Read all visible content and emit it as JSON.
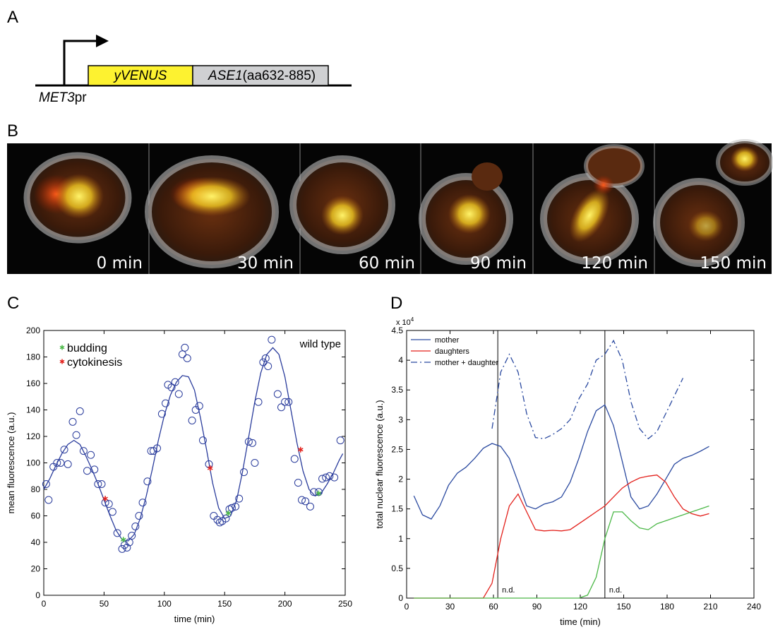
{
  "panel_labels": [
    "A",
    "B",
    "C",
    "D"
  ],
  "construct": {
    "promoter": [
      "MET3",
      "pr"
    ],
    "reporter": "yVENUS",
    "fusion": [
      "ASE1",
      "(aa632-885)"
    ]
  },
  "time_lapse": {
    "frames": [
      "0 min",
      "30 min",
      "60 min",
      "90 min",
      "120 min",
      "150 min"
    ]
  },
  "chart_data": [
    {
      "type": "scatter",
      "annotation": "wild type",
      "xlabel": "time (min)",
      "ylabel": "mean fluorescence (a.u.)",
      "xlim": [
        0,
        250
      ],
      "xticks": [
        0,
        50,
        100,
        150,
        200,
        250
      ],
      "ylim": [
        0,
        200
      ],
      "yticks": [
        0,
        20,
        40,
        60,
        80,
        100,
        120,
        140,
        160,
        180,
        200
      ],
      "series": [
        {
          "marker": "circle",
          "color": "#2a3c9c",
          "x": [
            2,
            4,
            8,
            11,
            14,
            17,
            20,
            24,
            27,
            30,
            33,
            36,
            39,
            42,
            45,
            48,
            51,
            54,
            57,
            61,
            65,
            67,
            69,
            71,
            73,
            76,
            79,
            82,
            86,
            89,
            91,
            94,
            98,
            101,
            103,
            106,
            109,
            112,
            115,
            117,
            119,
            123,
            126,
            129,
            132,
            137,
            141,
            144,
            146,
            148,
            151,
            154,
            156,
            159,
            162,
            166,
            170,
            173,
            175,
            178,
            182,
            184,
            186,
            189,
            194,
            197,
            200,
            203,
            208,
            211,
            214,
            217,
            221,
            224,
            228,
            231,
            234,
            237,
            241,
            246
          ],
          "values": [
            84,
            72,
            97,
            100,
            100,
            110,
            99,
            131,
            121,
            139,
            109,
            94,
            106,
            95,
            84,
            84,
            70,
            69,
            63,
            47,
            35,
            38,
            36,
            40,
            45,
            52,
            60,
            70,
            86,
            109,
            109,
            111,
            137,
            145,
            159,
            157,
            161,
            152,
            182,
            187,
            179,
            132,
            140,
            143,
            117,
            99,
            60,
            57,
            55,
            56,
            58,
            65,
            66,
            67,
            73,
            93,
            116,
            115,
            100,
            146,
            176,
            179,
            173,
            193,
            152,
            142,
            146,
            146,
            103,
            85,
            72,
            71,
            67,
            78,
            78,
            88,
            89,
            90,
            89,
            117
          ]
        },
        {
          "marker": "line",
          "color": "#2a3c9c",
          "x": [
            0,
            5,
            10,
            15,
            20,
            25,
            30,
            35,
            40,
            45,
            50,
            55,
            60,
            65,
            70,
            75,
            80,
            85,
            90,
            95,
            100,
            105,
            110,
            115,
            120,
            125,
            130,
            135,
            140,
            145,
            150,
            155,
            160,
            165,
            170,
            175,
            180,
            185,
            190,
            195,
            200,
            205,
            210,
            215,
            220,
            225,
            230,
            235,
            240,
            245,
            248
          ],
          "values": [
            80,
            88,
            98,
            107,
            114,
            117,
            114,
            105,
            95,
            84,
            72,
            60,
            49,
            42,
            41,
            46,
            58,
            75,
            95,
            117,
            136,
            151,
            161,
            166,
            165,
            155,
            134,
            110,
            85,
            66,
            58,
            60,
            72,
            94,
            120,
            146,
            168,
            182,
            187,
            182,
            165,
            140,
            115,
            94,
            80,
            75,
            77,
            84,
            92,
            102,
            107
          ]
        },
        {
          "name": "budding",
          "marker": "star",
          "color": "#4cb848",
          "x": [
            66,
            153,
            228
          ],
          "values": [
            42,
            62,
            77
          ]
        },
        {
          "name": "cytokinesis",
          "marker": "star",
          "color": "#e3201b",
          "x": [
            51,
            138,
            213
          ],
          "values": [
            73,
            96,
            110
          ]
        }
      ]
    },
    {
      "type": "line",
      "xlabel": "time (min)",
      "ylabel": "total nuclear fluorescence (a.u.)",
      "y_scale": [
        "x 10",
        "4"
      ],
      "xlim": [
        0,
        240
      ],
      "xticks": [
        0,
        30,
        60,
        90,
        120,
        150,
        180,
        210,
        240
      ],
      "ylim": [
        0,
        4.5
      ],
      "yticks": [
        0,
        0.5,
        1,
        1.5,
        2,
        2.5,
        3,
        3.5,
        4,
        4.5
      ],
      "x": [
        5,
        11,
        17,
        23,
        29,
        35,
        41,
        47,
        53,
        59,
        65,
        71,
        77,
        83,
        89,
        95,
        101,
        107,
        113,
        119,
        125,
        131,
        137,
        143,
        149,
        155,
        161,
        167,
        173,
        179,
        185,
        191,
        197,
        203,
        209
      ],
      "markers": [
        {
          "x": 63,
          "label": "n.d."
        },
        {
          "x": 137,
          "label": "n.d."
        }
      ],
      "series": [
        {
          "name": "mother",
          "color": "#2b4aa0",
          "style": "solid",
          "values": [
            1.72,
            1.4,
            1.33,
            1.55,
            1.9,
            2.1,
            2.2,
            2.35,
            2.52,
            2.6,
            2.55,
            2.35,
            1.95,
            1.55,
            1.5,
            1.58,
            1.62,
            1.7,
            1.95,
            2.35,
            2.8,
            3.15,
            3.25,
            2.9,
            2.3,
            1.7,
            1.5,
            1.55,
            1.75,
            2.0,
            2.25,
            2.35,
            2.4,
            2.47,
            2.55
          ]
        },
        {
          "name": "daughters",
          "color": "#e3201b",
          "style": "solid",
          "values": [
            0,
            0,
            0,
            0,
            0,
            0,
            0,
            0,
            0,
            0.25,
            1.0,
            1.55,
            1.75,
            1.45,
            1.15,
            1.13,
            1.14,
            1.13,
            1.15,
            1.25,
            1.35,
            1.45,
            1.55,
            1.7,
            1.85,
            1.95,
            2.02,
            2.05,
            2.07,
            1.95,
            1.7,
            1.5,
            1.42,
            1.38,
            1.42
          ]
        },
        {
          "color": "#4cb848",
          "style": "solid",
          "values": [
            0,
            0,
            0,
            0,
            0,
            0,
            0,
            0,
            0,
            0,
            0,
            0,
            0,
            0,
            0,
            0,
            0,
            0,
            0,
            0,
            0.05,
            0.35,
            1.0,
            1.45,
            1.45,
            1.3,
            1.18,
            1.15,
            1.25,
            1.3,
            1.35,
            1.4,
            1.45,
            1.5,
            1.55
          ]
        },
        {
          "name": "mother + daughter",
          "color": "#2b4aa0",
          "style": "dashdot",
          "values": [
            null,
            null,
            null,
            null,
            null,
            null,
            null,
            null,
            null,
            2.85,
            3.8,
            4.1,
            3.8,
            3.1,
            2.7,
            2.68,
            2.75,
            2.85,
            3.0,
            3.35,
            3.6,
            4.0,
            4.1,
            4.33,
            4.0,
            3.3,
            2.85,
            2.68,
            2.8,
            3.1,
            3.4,
            3.7,
            null,
            null,
            null
          ]
        }
      ]
    }
  ]
}
